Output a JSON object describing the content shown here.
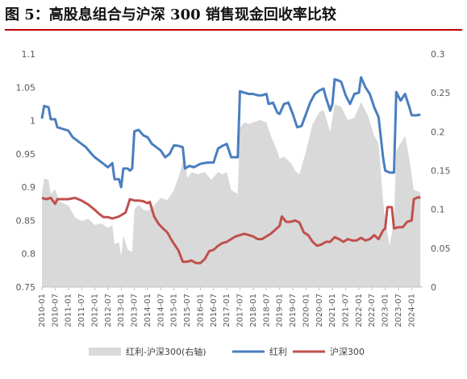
{
  "figure": {
    "title": "图 5：高股息组合与沪深 300 销售现金回收率比较"
  },
  "chart_data": {
    "type": "line+area",
    "title": "",
    "left_axis": {
      "min": 0.75,
      "max": 1.1,
      "ticks": [
        "0.75",
        "0.8",
        "0.85",
        "0.9",
        "0.95",
        "1",
        "1.05",
        "1.1"
      ]
    },
    "right_axis": {
      "min": 0,
      "max": 0.3,
      "ticks": [
        "0",
        "0.05",
        "0.1",
        "0.15",
        "0.2",
        "0.25",
        "0.3"
      ]
    },
    "x_tick_labels": [
      "2010-01",
      "2010-07",
      "2011-01",
      "2011-07",
      "2012-01",
      "2012-07",
      "2013-01",
      "2013-07",
      "2014-01",
      "2014-07",
      "2015-01",
      "2015-07",
      "2016-01",
      "2016-07",
      "2017-01",
      "2017-07",
      "2018-01",
      "2018-07",
      "2019-01",
      "2019-07",
      "2020-01",
      "2020-07",
      "2021-01",
      "2021-07",
      "2022-01",
      "2022-07",
      "2023-01",
      "2023-07",
      "2024-01"
    ],
    "legend": [
      "红利-沪深300(右轴)",
      "红利",
      "沪深300"
    ],
    "legend_position": "bottom",
    "colors": {
      "area": "#d9d9d9",
      "dividend": "#4a7ebf",
      "hs300": "#c0504d"
    },
    "series": [
      {
        "name": "红利",
        "axis": "left",
        "type": "line",
        "points": [
          [
            "2010-01",
            1.003
          ],
          [
            "2010-02",
            1.022
          ],
          [
            "2010-04",
            1.02
          ],
          [
            "2010-05",
            1.002
          ],
          [
            "2010-07",
            1.002
          ],
          [
            "2010-08",
            0.99
          ],
          [
            "2011-01",
            0.985
          ],
          [
            "2011-03",
            0.975
          ],
          [
            "2011-05",
            0.97
          ],
          [
            "2011-07",
            0.965
          ],
          [
            "2011-09",
            0.96
          ],
          [
            "2011-11",
            0.952
          ],
          [
            "2012-01",
            0.945
          ],
          [
            "2012-03",
            0.94
          ],
          [
            "2012-05",
            0.935
          ],
          [
            "2012-07",
            0.93
          ],
          [
            "2012-09",
            0.936
          ],
          [
            "2012-10",
            0.912
          ],
          [
            "2012-12",
            0.912
          ],
          [
            "2013-01",
            0.9
          ],
          [
            "2013-02",
            0.928
          ],
          [
            "2013-04",
            0.928
          ],
          [
            "2013-05",
            0.925
          ],
          [
            "2013-06",
            0.928
          ],
          [
            "2013-07",
            0.984
          ],
          [
            "2013-09",
            0.986
          ],
          [
            "2013-11",
            0.978
          ],
          [
            "2014-01",
            0.975
          ],
          [
            "2014-03",
            0.965
          ],
          [
            "2014-05",
            0.96
          ],
          [
            "2014-07",
            0.955
          ],
          [
            "2014-09",
            0.945
          ],
          [
            "2014-11",
            0.95
          ],
          [
            "2015-01",
            0.963
          ],
          [
            "2015-03",
            0.962
          ],
          [
            "2015-05",
            0.96
          ],
          [
            "2015-06",
            0.928
          ],
          [
            "2015-08",
            0.932
          ],
          [
            "2015-10",
            0.93
          ],
          [
            "2016-01",
            0.935
          ],
          [
            "2016-04",
            0.937
          ],
          [
            "2016-07",
            0.937
          ],
          [
            "2016-09",
            0.958
          ],
          [
            "2016-11",
            0.962
          ],
          [
            "2017-01",
            0.965
          ],
          [
            "2017-03",
            0.945
          ],
          [
            "2017-05",
            0.945
          ],
          [
            "2017-06",
            0.945
          ],
          [
            "2017-07",
            1.044
          ],
          [
            "2017-09",
            1.042
          ],
          [
            "2017-11",
            1.04
          ],
          [
            "2018-01",
            1.04
          ],
          [
            "2018-03",
            1.038
          ],
          [
            "2018-05",
            1.038
          ],
          [
            "2018-07",
            1.04
          ],
          [
            "2018-08",
            1.025
          ],
          [
            "2018-10",
            1.027
          ],
          [
            "2018-12",
            1.012
          ],
          [
            "2019-01",
            1.01
          ],
          [
            "2019-03",
            1.025
          ],
          [
            "2019-05",
            1.027
          ],
          [
            "2019-07",
            1.01
          ],
          [
            "2019-09",
            0.99
          ],
          [
            "2019-11",
            0.992
          ],
          [
            "2020-01",
            1.01
          ],
          [
            "2020-03",
            1.028
          ],
          [
            "2020-05",
            1.04
          ],
          [
            "2020-07",
            1.045
          ],
          [
            "2020-09",
            1.048
          ],
          [
            "2020-10",
            1.035
          ],
          [
            "2020-12",
            1.015
          ],
          [
            "2021-01",
            1.025
          ],
          [
            "2021-02",
            1.062
          ],
          [
            "2021-04",
            1.06
          ],
          [
            "2021-05",
            1.058
          ],
          [
            "2021-07",
            1.038
          ],
          [
            "2021-09",
            1.025
          ],
          [
            "2021-11",
            1.04
          ],
          [
            "2022-01",
            1.042
          ],
          [
            "2022-02",
            1.065
          ],
          [
            "2022-04",
            1.05
          ],
          [
            "2022-06",
            1.04
          ],
          [
            "2022-08",
            1.02
          ],
          [
            "2022-10",
            1.005
          ],
          [
            "2022-12",
            0.945
          ],
          [
            "2023-01",
            0.925
          ],
          [
            "2023-03",
            0.922
          ],
          [
            "2023-05",
            0.922
          ],
          [
            "2023-06",
            1.043
          ],
          [
            "2023-08",
            1.03
          ],
          [
            "2023-10",
            1.04
          ],
          [
            "2023-12",
            1.02
          ],
          [
            "2024-01",
            1.008
          ],
          [
            "2024-03",
            1.008
          ],
          [
            "2024-05",
            1.009
          ]
        ]
      },
      {
        "name": "沪深300",
        "axis": "left",
        "type": "line",
        "points": [
          [
            "2010-01",
            0.884
          ],
          [
            "2010-03",
            0.882
          ],
          [
            "2010-05",
            0.884
          ],
          [
            "2010-07",
            0.875
          ],
          [
            "2010-08",
            0.882
          ],
          [
            "2011-01",
            0.882
          ],
          [
            "2011-04",
            0.884
          ],
          [
            "2011-07",
            0.88
          ],
          [
            "2011-10",
            0.874
          ],
          [
            "2012-01",
            0.866
          ],
          [
            "2012-03",
            0.86
          ],
          [
            "2012-05",
            0.855
          ],
          [
            "2012-07",
            0.855
          ],
          [
            "2012-09",
            0.853
          ],
          [
            "2012-12",
            0.856
          ],
          [
            "2013-03",
            0.862
          ],
          [
            "2013-05",
            0.882
          ],
          [
            "2013-07",
            0.88
          ],
          [
            "2013-09",
            0.88
          ],
          [
            "2013-11",
            0.879
          ],
          [
            "2014-01",
            0.876
          ],
          [
            "2014-02",
            0.878
          ],
          [
            "2014-04",
            0.856
          ],
          [
            "2014-06",
            0.845
          ],
          [
            "2014-08",
            0.838
          ],
          [
            "2014-10",
            0.832
          ],
          [
            "2014-12",
            0.82
          ],
          [
            "2015-03",
            0.805
          ],
          [
            "2015-05",
            0.788
          ],
          [
            "2015-07",
            0.788
          ],
          [
            "2015-09",
            0.79
          ],
          [
            "2015-11",
            0.786
          ],
          [
            "2016-01",
            0.786
          ],
          [
            "2016-03",
            0.792
          ],
          [
            "2016-05",
            0.804
          ],
          [
            "2016-07",
            0.806
          ],
          [
            "2016-09",
            0.812
          ],
          [
            "2016-11",
            0.816
          ],
          [
            "2017-01",
            0.818
          ],
          [
            "2017-03",
            0.822
          ],
          [
            "2017-05",
            0.826
          ],
          [
            "2017-07",
            0.828
          ],
          [
            "2017-09",
            0.83
          ],
          [
            "2017-11",
            0.828
          ],
          [
            "2018-01",
            0.826
          ],
          [
            "2018-03",
            0.822
          ],
          [
            "2018-05",
            0.822
          ],
          [
            "2018-07",
            0.826
          ],
          [
            "2018-09",
            0.83
          ],
          [
            "2018-11",
            0.836
          ],
          [
            "2019-01",
            0.842
          ],
          [
            "2019-02",
            0.856
          ],
          [
            "2019-04",
            0.848
          ],
          [
            "2019-06",
            0.848
          ],
          [
            "2019-08",
            0.85
          ],
          [
            "2019-10",
            0.847
          ],
          [
            "2019-12",
            0.832
          ],
          [
            "2020-02",
            0.828
          ],
          [
            "2020-04",
            0.818
          ],
          [
            "2020-06",
            0.812
          ],
          [
            "2020-08",
            0.814
          ],
          [
            "2020-10",
            0.818
          ],
          [
            "2020-12",
            0.818
          ],
          [
            "2021-02",
            0.825
          ],
          [
            "2021-04",
            0.822
          ],
          [
            "2021-06",
            0.818
          ],
          [
            "2021-08",
            0.822
          ],
          [
            "2021-10",
            0.82
          ],
          [
            "2021-12",
            0.82
          ],
          [
            "2022-02",
            0.824
          ],
          [
            "2022-04",
            0.82
          ],
          [
            "2022-06",
            0.822
          ],
          [
            "2022-08",
            0.828
          ],
          [
            "2022-10",
            0.822
          ],
          [
            "2022-12",
            0.835
          ],
          [
            "2023-01",
            0.838
          ],
          [
            "2023-02",
            0.87
          ],
          [
            "2023-04",
            0.87
          ],
          [
            "2023-05",
            0.838
          ],
          [
            "2023-07",
            0.84
          ],
          [
            "2023-09",
            0.84
          ],
          [
            "2023-11",
            0.848
          ],
          [
            "2024-01",
            0.85
          ],
          [
            "2024-02",
            0.882
          ],
          [
            "2024-04",
            0.885
          ],
          [
            "2024-05",
            0.884
          ]
        ]
      },
      {
        "name": "红利-沪深300(右轴)",
        "axis": "right",
        "type": "area",
        "points": [
          [
            "2010-01",
            0.12
          ],
          [
            "2010-02",
            0.14
          ],
          [
            "2010-04",
            0.138
          ],
          [
            "2010-05",
            0.12
          ],
          [
            "2010-07",
            0.126
          ],
          [
            "2010-09",
            0.11
          ],
          [
            "2011-01",
            0.105
          ],
          [
            "2011-04",
            0.09
          ],
          [
            "2011-07",
            0.085
          ],
          [
            "2011-10",
            0.088
          ],
          [
            "2012-01",
            0.08
          ],
          [
            "2012-04",
            0.082
          ],
          [
            "2012-07",
            0.076
          ],
          [
            "2012-09",
            0.08
          ],
          [
            "2012-10",
            0.055
          ],
          [
            "2012-12",
            0.058
          ],
          [
            "2013-01",
            0.04
          ],
          [
            "2013-02",
            0.066
          ],
          [
            "2013-04",
            0.048
          ],
          [
            "2013-06",
            0.045
          ],
          [
            "2013-07",
            0.1
          ],
          [
            "2013-09",
            0.106
          ],
          [
            "2013-11",
            0.1
          ],
          [
            "2014-01",
            0.098
          ],
          [
            "2014-04",
            0.105
          ],
          [
            "2014-07",
            0.115
          ],
          [
            "2014-10",
            0.112
          ],
          [
            "2015-01",
            0.125
          ],
          [
            "2015-04",
            0.15
          ],
          [
            "2015-06",
            0.172
          ],
          [
            "2015-07",
            0.14
          ],
          [
            "2015-09",
            0.148
          ],
          [
            "2015-12",
            0.145
          ],
          [
            "2016-03",
            0.148
          ],
          [
            "2016-06",
            0.138
          ],
          [
            "2016-09",
            0.148
          ],
          [
            "2016-11",
            0.145
          ],
          [
            "2017-01",
            0.148
          ],
          [
            "2017-03",
            0.125
          ],
          [
            "2017-06",
            0.12
          ],
          [
            "2017-07",
            0.205
          ],
          [
            "2017-09",
            0.212
          ],
          [
            "2017-11",
            0.21
          ],
          [
            "2018-01",
            0.212
          ],
          [
            "2018-04",
            0.215
          ],
          [
            "2018-07",
            0.212
          ],
          [
            "2018-09",
            0.195
          ],
          [
            "2018-12",
            0.175
          ],
          [
            "2019-01",
            0.165
          ],
          [
            "2019-03",
            0.168
          ],
          [
            "2019-06",
            0.16
          ],
          [
            "2019-08",
            0.15
          ],
          [
            "2019-10",
            0.145
          ],
          [
            "2020-01",
            0.175
          ],
          [
            "2020-04",
            0.21
          ],
          [
            "2020-07",
            0.225
          ],
          [
            "2020-09",
            0.228
          ],
          [
            "2020-12",
            0.2
          ],
          [
            "2021-02",
            0.235
          ],
          [
            "2021-05",
            0.232
          ],
          [
            "2021-08",
            0.215
          ],
          [
            "2021-11",
            0.218
          ],
          [
            "2022-02",
            0.238
          ],
          [
            "2022-05",
            0.222
          ],
          [
            "2022-08",
            0.195
          ],
          [
            "2022-10",
            0.185
          ],
          [
            "2022-12",
            0.112
          ],
          [
            "2023-01",
            0.085
          ],
          [
            "2023-03",
            0.053
          ],
          [
            "2023-05",
            0.086
          ],
          [
            "2023-06",
            0.175
          ],
          [
            "2023-08",
            0.185
          ],
          [
            "2023-10",
            0.195
          ],
          [
            "2023-12",
            0.165
          ],
          [
            "2024-02",
            0.125
          ],
          [
            "2024-05",
            0.122
          ]
        ]
      }
    ]
  }
}
